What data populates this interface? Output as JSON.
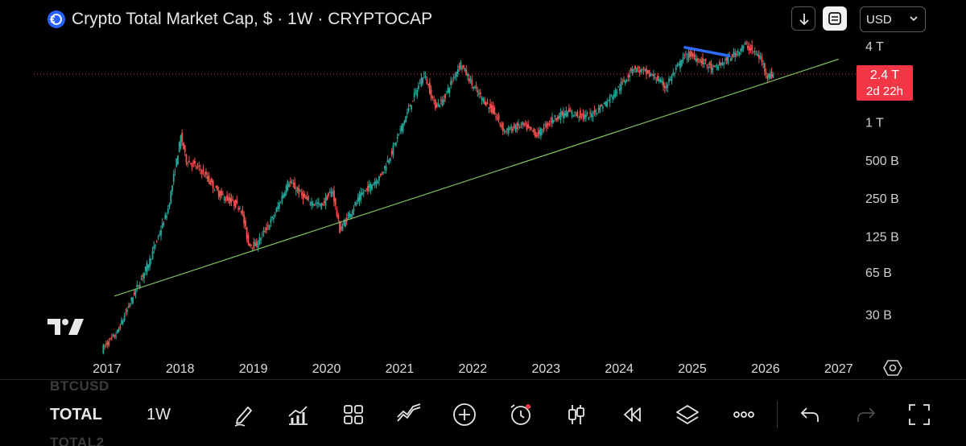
{
  "header": {
    "title": "Crypto Total Market Cap, $ · 1W · CRYPTOCAP",
    "currency": "USD",
    "icons": {
      "logo": "cryptocap-logo-icon",
      "down": "arrow-down-icon",
      "scale": "scale-frame-icon",
      "chevron": "chevron-down-icon"
    }
  },
  "badge": {
    "price": "2.4 T",
    "time": "2d 22h",
    "color": "#f23645"
  },
  "colors": {
    "up": "#26a69a",
    "down": "#ef5350",
    "trend": "#7fbf5f",
    "resistance": "#2f6bff",
    "price_line": "#f23645"
  },
  "chart_data": {
    "type": "candlestick",
    "title": "Crypto Total Market Cap, $ · 1W · CRYPTOCAP",
    "y_scale": "log",
    "ylim": [
      15,
      5000
    ],
    "y_unit": "B USD",
    "y_ticks": [
      {
        "label": "4 T",
        "value": 4000
      },
      {
        "label": "1 T",
        "value": 1000
      },
      {
        "label": "500 B",
        "value": 500
      },
      {
        "label": "250 B",
        "value": 250
      },
      {
        "label": "125 B",
        "value": 125
      },
      {
        "label": "65 B",
        "value": 65
      },
      {
        "label": "30 B",
        "value": 30
      }
    ],
    "x_ticks": [
      {
        "label": "2017",
        "value": 2017.0
      },
      {
        "label": "2018",
        "value": 2018.0
      },
      {
        "label": "2019",
        "value": 2019.0
      },
      {
        "label": "2020",
        "value": 2020.0
      },
      {
        "label": "2021",
        "value": 2021.0
      },
      {
        "label": "2022",
        "value": 2022.0
      },
      {
        "label": "2023",
        "value": 2023.0
      },
      {
        "label": "2024",
        "value": 2024.0
      },
      {
        "label": "2025",
        "value": 2025.0
      },
      {
        "label": "2026",
        "value": 2026.0
      },
      {
        "label": "2027",
        "value": 2027.0
      }
    ],
    "xlim": [
      2016.0,
      2027.2
    ],
    "anchors": [
      [
        2016.95,
        16
      ],
      [
        2017.15,
        21
      ],
      [
        2017.4,
        45
      ],
      [
        2017.6,
        80
      ],
      [
        2017.85,
        200
      ],
      [
        2018.03,
        780
      ],
      [
        2018.1,
        500
      ],
      [
        2018.3,
        420
      ],
      [
        2018.55,
        270
      ],
      [
        2018.85,
        210
      ],
      [
        2018.95,
        110
      ],
      [
        2019.05,
        105
      ],
      [
        2019.3,
        180
      ],
      [
        2019.5,
        340
      ],
      [
        2019.75,
        240
      ],
      [
        2019.95,
        220
      ],
      [
        2020.1,
        290
      ],
      [
        2020.2,
        140
      ],
      [
        2020.5,
        270
      ],
      [
        2020.75,
        370
      ],
      [
        2020.9,
        560
      ],
      [
        2021.15,
        1300
      ],
      [
        2021.35,
        2450
      ],
      [
        2021.5,
        1350
      ],
      [
        2021.6,
        1450
      ],
      [
        2021.85,
        2950
      ],
      [
        2022.05,
        1800
      ],
      [
        2022.3,
        1200
      ],
      [
        2022.45,
        850
      ],
      [
        2022.7,
        950
      ],
      [
        2022.9,
        790
      ],
      [
        2023.1,
        1050
      ],
      [
        2023.3,
        1200
      ],
      [
        2023.6,
        1100
      ],
      [
        2023.85,
        1450
      ],
      [
        2024.1,
        2150
      ],
      [
        2024.2,
        2700
      ],
      [
        2024.5,
        2300
      ],
      [
        2024.65,
        1900
      ],
      [
        2024.9,
        3250
      ],
      [
        2024.98,
        3450
      ],
      [
        2025.2,
        2900
      ],
      [
        2025.3,
        2600
      ],
      [
        2025.55,
        3300
      ],
      [
        2025.75,
        4100
      ],
      [
        2025.95,
        3200
      ],
      [
        2026.05,
        2300
      ],
      [
        2026.12,
        2400
      ]
    ],
    "trendline": {
      "points": [
        [
          2017.1,
          42
        ],
        [
          2027.0,
          3150
        ]
      ],
      "color": "#7fbf5f"
    },
    "resistance_line": {
      "points": [
        [
          2024.9,
          3900
        ],
        [
          2025.5,
          3350
        ]
      ],
      "color": "#2f6bff"
    },
    "current_price": {
      "value": 2400,
      "label": "2.4 T",
      "countdown": "2d 22h"
    }
  },
  "toolbar": {
    "ghost_top": "BTCUSD",
    "symbol": "TOTAL",
    "interval": "1W",
    "ghost_bottom": "TOTAL2",
    "tools": [
      "pencil-icon",
      "indicators-icon",
      "grid-icon",
      "multi-line-icon",
      "add-icon",
      "alert-clock-icon",
      "candlestick-icon",
      "replay-icon",
      "layers-icon",
      "more-icon",
      "undo-icon",
      "redo-icon",
      "fullscreen-icon"
    ]
  }
}
